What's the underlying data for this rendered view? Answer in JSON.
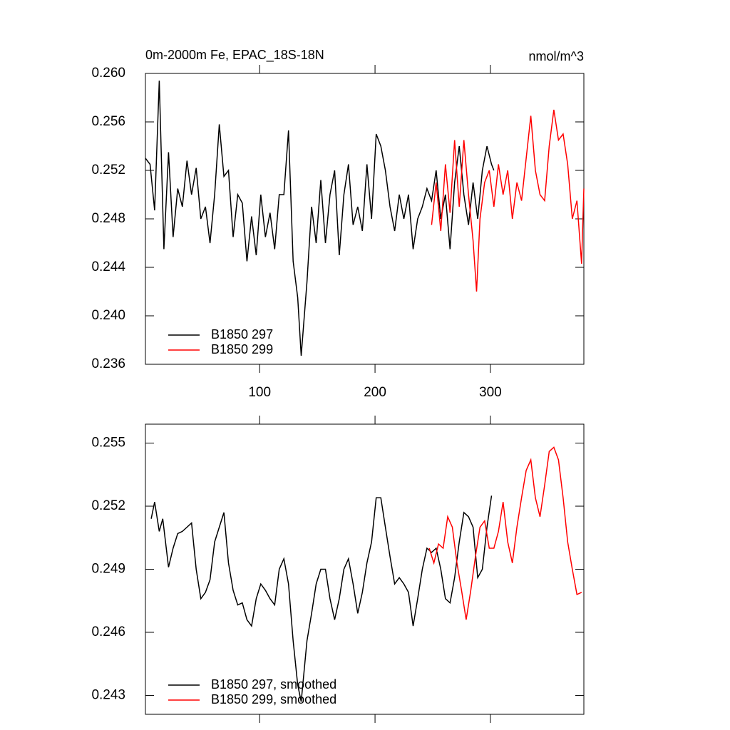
{
  "chart_data": [
    {
      "type": "line",
      "title": "0m-2000m Fe, EPAC_18S-18N",
      "subtitle": "nmol/m^3",
      "xlim": [
        1,
        381
      ],
      "xticks": [
        100,
        200,
        300
      ],
      "show_xtick_labels": true,
      "ylim": [
        0.236,
        0.26
      ],
      "yticks": [
        {
          "value": 0.236,
          "label": "0.236"
        },
        {
          "value": 0.24,
          "label": "0.240"
        },
        0.244,
        0.248,
        0.252,
        0.256,
        {
          "value": 0.26,
          "label": "0.260"
        }
      ],
      "legend": "lower left",
      "series": [
        {
          "name": "B1850 297",
          "color": "#000000",
          "x": [
            1,
            5,
            9,
            13,
            17,
            21,
            25,
            29,
            33,
            37,
            41,
            45,
            49,
            53,
            57,
            61,
            65,
            69,
            73,
            77,
            81,
            85,
            89,
            93,
            97,
            101,
            105,
            109,
            113,
            117,
            121,
            125,
            129,
            133,
            136,
            141,
            145,
            149,
            153,
            157,
            161,
            165,
            169,
            173,
            177,
            181,
            185,
            189,
            193,
            197,
            201,
            205,
            209,
            213,
            217,
            221,
            225,
            229,
            233,
            237,
            241,
            245,
            249,
            253,
            257,
            261,
            265,
            269,
            273,
            277,
            281,
            285,
            289,
            293,
            297,
            301,
            303
          ],
          "values": [
            0.253,
            0.2525,
            0.2487,
            0.2594,
            0.2455,
            0.2535,
            0.2465,
            0.2505,
            0.249,
            0.2528,
            0.25,
            0.2522,
            0.248,
            0.249,
            0.246,
            0.25,
            0.2558,
            0.2515,
            0.252,
            0.2465,
            0.25,
            0.2493,
            0.2445,
            0.2482,
            0.245,
            0.25,
            0.2465,
            0.2485,
            0.2455,
            0.25,
            0.25,
            0.2553,
            0.2445,
            0.2415,
            0.2367,
            0.2428,
            0.249,
            0.246,
            0.2512,
            0.246,
            0.25,
            0.252,
            0.245,
            0.25,
            0.2525,
            0.2475,
            0.249,
            0.247,
            0.2525,
            0.248,
            0.255,
            0.254,
            0.252,
            0.249,
            0.247,
            0.25,
            0.248,
            0.25,
            0.2455,
            0.248,
            0.249,
            0.2505,
            0.2495,
            0.252,
            0.248,
            0.25,
            0.2455,
            0.251,
            0.254,
            0.25,
            0.2475,
            0.251,
            0.248,
            0.252,
            0.254,
            0.2525,
            0.252
          ]
        },
        {
          "name": "B1850 299",
          "color": "#ff0000",
          "x": [
            249,
            253,
            257,
            261,
            265,
            269,
            273,
            277,
            281,
            285,
            288,
            291,
            295,
            299,
            303,
            307,
            311,
            315,
            319,
            323,
            327,
            331,
            335,
            339,
            343,
            347,
            351,
            355,
            359,
            363,
            367,
            371,
            375,
            379,
            381
          ],
          "values": [
            0.2475,
            0.251,
            0.247,
            0.2525,
            0.2485,
            0.2545,
            0.249,
            0.2545,
            0.25,
            0.2462,
            0.242,
            0.248,
            0.251,
            0.252,
            0.249,
            0.2525,
            0.25,
            0.252,
            0.248,
            0.251,
            0.2495,
            0.253,
            0.2565,
            0.252,
            0.25,
            0.2495,
            0.254,
            0.257,
            0.2545,
            0.255,
            0.2525,
            0.248,
            0.2495,
            0.2443,
            0.2505
          ]
        }
      ]
    },
    {
      "type": "line",
      "xlim": [
        1,
        381
      ],
      "xticks": [
        100,
        200,
        300
      ],
      "show_xtick_labels": false,
      "ylim": [
        0.2421,
        0.2559
      ],
      "yticks": [
        0.243,
        0.246,
        0.249,
        0.252,
        0.255
      ],
      "legend": "lower left",
      "series": [
        {
          "name": "B1850 297, smoothed",
          "color": "#000000",
          "x": [
            6,
            9,
            13,
            16,
            21,
            25,
            29,
            33,
            37,
            41,
            45,
            49,
            53,
            57,
            61,
            65,
            69,
            73,
            77,
            81,
            85,
            89,
            93,
            97,
            101,
            105,
            109,
            113,
            117,
            121,
            125,
            129,
            133,
            136,
            141,
            145,
            149,
            153,
            157,
            161,
            165,
            169,
            173,
            177,
            181,
            185,
            189,
            193,
            197,
            201,
            205,
            209,
            213,
            217,
            221,
            225,
            229,
            233,
            237,
            241,
            245,
            249,
            253,
            257,
            261,
            265,
            269,
            273,
            277,
            281,
            285,
            289,
            293,
            297,
            301
          ],
          "values": [
            0.2514,
            0.2522,
            0.2508,
            0.2514,
            0.2491,
            0.25,
            0.2507,
            0.2508,
            0.251,
            0.2512,
            0.249,
            0.2476,
            0.2479,
            0.2485,
            0.2503,
            0.251,
            0.2517,
            0.2493,
            0.248,
            0.2473,
            0.2474,
            0.2466,
            0.2463,
            0.2476,
            0.2483,
            0.248,
            0.2476,
            0.2473,
            0.249,
            0.2495,
            0.2483,
            0.2456,
            0.2435,
            0.2427,
            0.2456,
            0.2469,
            0.2483,
            0.249,
            0.249,
            0.2476,
            0.2466,
            0.2476,
            0.249,
            0.2495,
            0.2483,
            0.2469,
            0.2479,
            0.2493,
            0.2503,
            0.2524,
            0.2524,
            0.251,
            0.2496,
            0.2483,
            0.2486,
            0.2483,
            0.2479,
            0.2463,
            0.2476,
            0.249,
            0.25,
            0.2498,
            0.25,
            0.249,
            0.2476,
            0.2474,
            0.2486,
            0.2503,
            0.2517,
            0.2515,
            0.251,
            0.2486,
            0.249,
            0.251,
            0.2525
          ]
        },
        {
          "name": "B1850 299, smoothed",
          "color": "#ff0000",
          "x": [
            247,
            251,
            255,
            259,
            263,
            267,
            271,
            275,
            279,
            283,
            287,
            291,
            295,
            299,
            303,
            307,
            311,
            315,
            319,
            323,
            327,
            331,
            335,
            339,
            343,
            347,
            351,
            355,
            359,
            363,
            367,
            371,
            375,
            379
          ],
          "values": [
            0.25,
            0.2493,
            0.2502,
            0.25,
            0.2515,
            0.251,
            0.2493,
            0.248,
            0.2466,
            0.248,
            0.2496,
            0.251,
            0.2513,
            0.25,
            0.25,
            0.2508,
            0.2522,
            0.2503,
            0.2493,
            0.251,
            0.2524,
            0.2537,
            0.2542,
            0.2524,
            0.2515,
            0.253,
            0.2546,
            0.2548,
            0.2542,
            0.2524,
            0.2503,
            0.249,
            0.2478,
            0.2479
          ]
        }
      ]
    }
  ]
}
